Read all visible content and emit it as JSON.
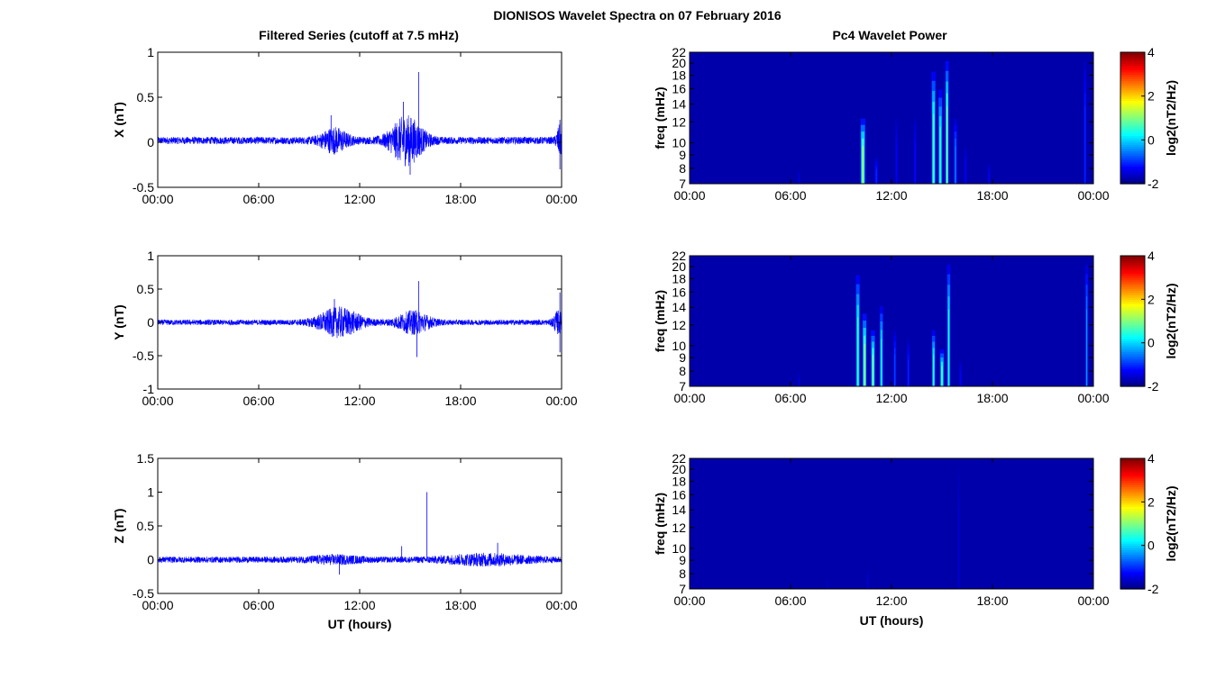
{
  "figure": {
    "title": "DIONISOS Wavelet Spectra on 07 February 2016",
    "left_title": "Filtered Series (cutoff at 7.5 mHz)",
    "right_title": "Pc4 Wavelet Power"
  },
  "colors": {
    "trace": "#0000ff",
    "spectrum_background": "#00008f",
    "axis": "#000000"
  },
  "chart_data": [
    {
      "type": "line",
      "panel": "X",
      "ylabel": "X (nT)",
      "xlabel": "",
      "x_ticks": [
        "00:00",
        "06:00",
        "12:00",
        "18:00",
        "00:00"
      ],
      "x_tick_hours": [
        0,
        6,
        12,
        18,
        24
      ],
      "xlim": [
        0,
        24
      ],
      "ylim": [
        -0.5,
        1
      ],
      "y_ticks": [
        -0.5,
        0,
        0.5,
        1
      ],
      "y_tick_labels": [
        "-0.5",
        "0",
        "0.5",
        "1"
      ],
      "series": [
        {
          "baseline": 0.02,
          "noise_amplitude": 0.04,
          "bursts": [
            {
              "hour": 10.5,
              "amplitude": 0.12,
              "width": 0.8
            },
            {
              "hour": 14.8,
              "amplitude": 0.25,
              "width": 1.0
            },
            {
              "hour": 23.9,
              "amplitude": 0.15,
              "width": 0.2
            }
          ],
          "spikes": [
            {
              "hour": 15.5,
              "value": 0.78
            },
            {
              "hour": 14.6,
              "value": 0.45
            },
            {
              "hour": 15.0,
              "value": -0.36
            },
            {
              "hour": 10.3,
              "value": 0.3
            },
            {
              "hour": 23.9,
              "value": 0.25
            },
            {
              "hour": 23.9,
              "value": -0.3
            }
          ]
        }
      ]
    },
    {
      "type": "line",
      "panel": "Y",
      "ylabel": "Y (nT)",
      "xlabel": "",
      "x_ticks": [
        "00:00",
        "06:00",
        "12:00",
        "18:00",
        "00:00"
      ],
      "x_tick_hours": [
        0,
        6,
        12,
        18,
        24
      ],
      "xlim": [
        0,
        24
      ],
      "ylim": [
        -1,
        1
      ],
      "y_ticks": [
        -1,
        -0.5,
        0,
        0.5,
        1
      ],
      "y_tick_labels": [
        "-1",
        "-0.5",
        "0",
        "0.5",
        "1"
      ],
      "series": [
        {
          "baseline": 0.0,
          "noise_amplitude": 0.04,
          "bursts": [
            {
              "hour": 10.8,
              "amplitude": 0.2,
              "width": 1.3
            },
            {
              "hour": 15.2,
              "amplitude": 0.15,
              "width": 1.0
            },
            {
              "hour": 23.8,
              "amplitude": 0.15,
              "width": 0.3
            }
          ],
          "spikes": [
            {
              "hour": 15.5,
              "value": 0.62
            },
            {
              "hour": 15.4,
              "value": -0.52
            },
            {
              "hour": 10.5,
              "value": 0.35
            },
            {
              "hour": 23.9,
              "value": 0.45
            },
            {
              "hour": 23.9,
              "value": -0.45
            }
          ]
        }
      ]
    },
    {
      "type": "line",
      "panel": "Z",
      "ylabel": "Z (nT)",
      "xlabel": "UT (hours)",
      "x_ticks": [
        "00:00",
        "06:00",
        "12:00",
        "18:00",
        "00:00"
      ],
      "x_tick_hours": [
        0,
        6,
        12,
        18,
        24
      ],
      "xlim": [
        0,
        24
      ],
      "ylim": [
        -0.5,
        1.5
      ],
      "y_ticks": [
        -0.5,
        0,
        0.5,
        1,
        1.5
      ],
      "y_tick_labels": [
        "-0.5",
        "0",
        "0.5",
        "1",
        "1.5"
      ],
      "series": [
        {
          "baseline": 0.0,
          "noise_amplitude": 0.045,
          "bursts": [
            {
              "hour": 19.5,
              "amplitude": 0.06,
              "width": 2.5
            },
            {
              "hour": 10.5,
              "amplitude": 0.04,
              "width": 1.5
            }
          ],
          "spikes": [
            {
              "hour": 16.0,
              "value": 1.0
            },
            {
              "hour": 14.5,
              "value": 0.2
            },
            {
              "hour": 20.2,
              "value": 0.25
            },
            {
              "hour": 10.8,
              "value": -0.22
            }
          ]
        }
      ]
    },
    {
      "type": "heatmap",
      "panel": "X spectrum",
      "ylabel": "freq (mHz)",
      "xlabel": "",
      "x_ticks": [
        "00:00",
        "06:00",
        "12:00",
        "18:00",
        "00:00"
      ],
      "x_tick_hours": [
        0,
        6,
        12,
        18,
        24
      ],
      "xlim": [
        0,
        24
      ],
      "ylim": [
        7,
        22
      ],
      "y_ticks": [
        7,
        8,
        9,
        10,
        12,
        14,
        16,
        18,
        20,
        22
      ],
      "scale": "log",
      "colorbar": {
        "label": "log2(nT2/Hz)",
        "min": -2,
        "max": 4,
        "ticks": [
          -2,
          0,
          2,
          4
        ]
      },
      "background_level": -1.75,
      "streaks": [
        {
          "hour": 10.3,
          "fmax": 13,
          "level": 1.2,
          "width": 0.35
        },
        {
          "hour": 11.1,
          "fmax": 9,
          "level": -1.0,
          "width": 0.25
        },
        {
          "hour": 12.3,
          "fmax": 13,
          "level": -1.3,
          "width": 0.2
        },
        {
          "hour": 13.4,
          "fmax": 13,
          "level": -1.2,
          "width": 0.2
        },
        {
          "hour": 14.5,
          "fmax": 20,
          "level": 0.8,
          "width": 0.3
        },
        {
          "hour": 14.9,
          "fmax": 17,
          "level": 0.6,
          "width": 0.3
        },
        {
          "hour": 15.3,
          "fmax": 22,
          "level": 1.0,
          "width": 0.25
        },
        {
          "hour": 15.8,
          "fmax": 13,
          "level": -0.5,
          "width": 0.25
        },
        {
          "hour": 16.4,
          "fmax": 10,
          "level": -1.3,
          "width": 0.2
        },
        {
          "hour": 17.8,
          "fmax": 8.5,
          "level": -1.3,
          "width": 0.2
        },
        {
          "hour": 6.5,
          "fmax": 8,
          "level": -1.5,
          "width": 0.2
        },
        {
          "hour": 23.5,
          "fmax": 22,
          "level": -1.0,
          "width": 0.2
        }
      ]
    },
    {
      "type": "heatmap",
      "panel": "Y spectrum",
      "ylabel": "freq (mHz)",
      "xlabel": "",
      "x_ticks": [
        "00:00",
        "06:00",
        "12:00",
        "18:00",
        "00:00"
      ],
      "x_tick_hours": [
        0,
        6,
        12,
        18,
        24
      ],
      "xlim": [
        0,
        24
      ],
      "ylim": [
        7,
        22
      ],
      "y_ticks": [
        7,
        8,
        9,
        10,
        12,
        14,
        16,
        18,
        20,
        22
      ],
      "scale": "log",
      "colorbar": {
        "label": "log2(nT2/Hz)",
        "min": -2,
        "max": 4,
        "ticks": [
          -2,
          0,
          2,
          4
        ]
      },
      "background_level": -1.75,
      "streaks": [
        {
          "hour": 10.0,
          "fmax": 20,
          "level": 0.6,
          "width": 0.3
        },
        {
          "hour": 10.4,
          "fmax": 14,
          "level": 1.2,
          "width": 0.3
        },
        {
          "hour": 10.9,
          "fmax": 12,
          "level": 1.0,
          "width": 0.3
        },
        {
          "hour": 11.4,
          "fmax": 15,
          "level": 0.4,
          "width": 0.25
        },
        {
          "hour": 12.2,
          "fmax": 12,
          "level": -0.8,
          "width": 0.2
        },
        {
          "hour": 13.0,
          "fmax": 11,
          "level": -1.0,
          "width": 0.2
        },
        {
          "hour": 14.5,
          "fmax": 12,
          "level": 0.6,
          "width": 0.25
        },
        {
          "hour": 15.0,
          "fmax": 10,
          "level": 0.8,
          "width": 0.3
        },
        {
          "hour": 15.4,
          "fmax": 22,
          "level": 0.4,
          "width": 0.25
        },
        {
          "hour": 16.1,
          "fmax": 9,
          "level": -1.3,
          "width": 0.2
        },
        {
          "hour": 6.5,
          "fmax": 8,
          "level": -1.5,
          "width": 0.2
        },
        {
          "hour": 23.6,
          "fmax": 22,
          "level": -0.3,
          "width": 0.2
        }
      ]
    },
    {
      "type": "heatmap",
      "panel": "Z spectrum",
      "ylabel": "freq (mHz)",
      "xlabel": "UT (hours)",
      "x_ticks": [
        "00:00",
        "06:00",
        "12:00",
        "18:00",
        "00:00"
      ],
      "x_tick_hours": [
        0,
        6,
        12,
        18,
        24
      ],
      "xlim": [
        0,
        24
      ],
      "ylim": [
        7,
        22
      ],
      "y_ticks": [
        7,
        8,
        9,
        10,
        12,
        14,
        16,
        18,
        20,
        22
      ],
      "scale": "log",
      "colorbar": {
        "label": "log2(nT2/Hz)",
        "min": -2,
        "max": 4,
        "ticks": [
          -2,
          0,
          2,
          4
        ]
      },
      "background_level": -1.75,
      "streaks": [
        {
          "hour": 16.0,
          "fmax": 22,
          "level": -1.5,
          "width": 0.15
        },
        {
          "hour": 10.6,
          "fmax": 8.5,
          "level": -1.5,
          "width": 0.15
        },
        {
          "hour": 8.2,
          "fmax": 7.8,
          "level": -1.6,
          "width": 0.15
        }
      ]
    }
  ]
}
